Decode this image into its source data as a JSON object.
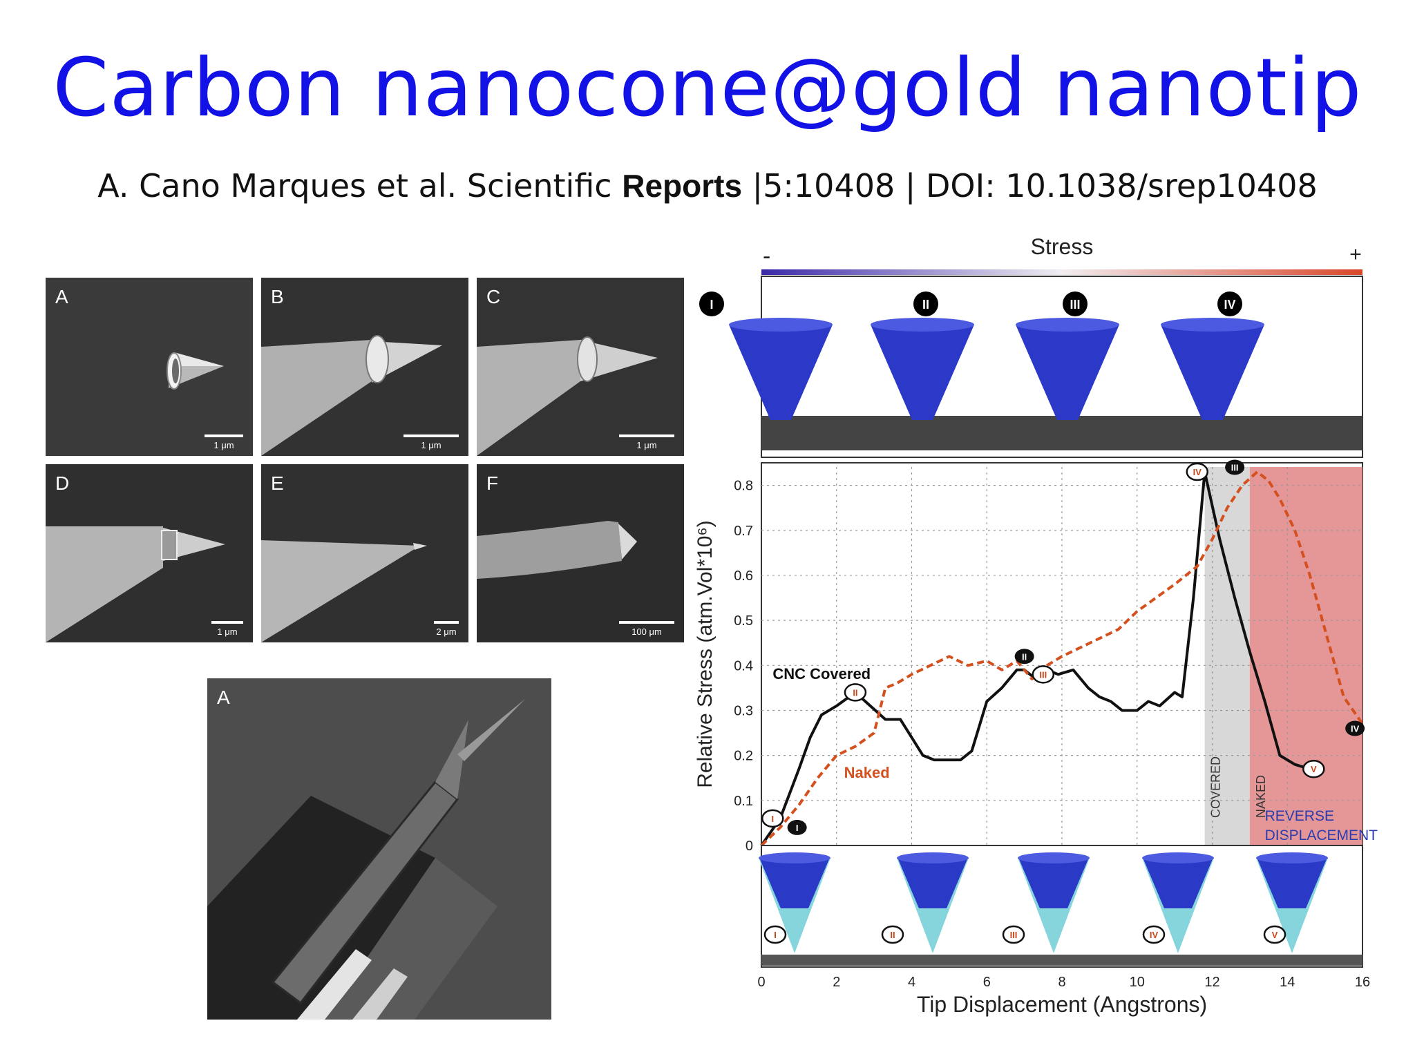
{
  "slide": {
    "title": "Carbon nanocone@gold nanotip",
    "citation": {
      "authors": "A. Cano  Marques et al. Scientific",
      "journal": "Reports",
      "rest": "|5:10408 | DOI: 10.1038/srep10408"
    }
  },
  "sem_panels": [
    {
      "label": "A",
      "scale": "1 μm"
    },
    {
      "label": "B",
      "scale": "1 μm"
    },
    {
      "label": "C",
      "scale": "1 μm"
    },
    {
      "label": "D",
      "scale": "1 μm"
    },
    {
      "label": "E",
      "scale": "2 μm"
    },
    {
      "label": "F",
      "scale": "100 μm"
    }
  ],
  "large_panel": {
    "label": "A"
  },
  "chart_data": {
    "type": "line",
    "colorbar": {
      "label": "Stress",
      "min_label": "-",
      "max_label": "+",
      "colors": [
        "#3a2aa8",
        "#f2eef2",
        "#d9472a"
      ]
    },
    "xlabel": "Tip Displacement (Angstrons)",
    "ylabel": "Relative Stress (atm.Vol*10⁶)",
    "xlim": [
      0,
      16
    ],
    "ylim": [
      0,
      0.85
    ],
    "xticks": [
      "0",
      "2",
      "4",
      "6",
      "8",
      "10",
      "12",
      "14",
      "16"
    ],
    "yticks": [
      "0",
      "0.1",
      "0.2",
      "0.3",
      "0.4",
      "0.5",
      "0.6",
      "0.7",
      "0.8"
    ],
    "grid": true,
    "series": [
      {
        "name": "CNC Covered",
        "color": "#111111",
        "style": "solid",
        "x": [
          0,
          0.5,
          1,
          1.3,
          1.6,
          2,
          2.5,
          2.9,
          3.3,
          3.7,
          4,
          4.3,
          4.6,
          5,
          5.3,
          5.6,
          6,
          6.4,
          6.8,
          7,
          7.3,
          7.6,
          7.9,
          8.3,
          8.7,
          9,
          9.3,
          9.6,
          10,
          10.3,
          10.6,
          11,
          11.2,
          11.5,
          11.8,
          12.2,
          12.6,
          13,
          13.4,
          13.8,
          14.2,
          14.6
        ],
        "y": [
          0,
          0.06,
          0.17,
          0.24,
          0.29,
          0.31,
          0.34,
          0.31,
          0.28,
          0.28,
          0.24,
          0.2,
          0.19,
          0.19,
          0.19,
          0.21,
          0.32,
          0.35,
          0.39,
          0.39,
          0.37,
          0.39,
          0.38,
          0.39,
          0.35,
          0.33,
          0.32,
          0.3,
          0.3,
          0.32,
          0.31,
          0.34,
          0.33,
          0.55,
          0.83,
          0.68,
          0.55,
          0.43,
          0.32,
          0.2,
          0.18,
          0.17
        ]
      },
      {
        "name": "Naked",
        "color": "#d4501e",
        "style": "dashed",
        "x": [
          0,
          0.5,
          1,
          1.5,
          2,
          2.5,
          3,
          3.3,
          3.6,
          4,
          4.5,
          5,
          5.5,
          6,
          6.4,
          6.8,
          7.2,
          7.6,
          8,
          8.5,
          9,
          9.5,
          10,
          10.5,
          11,
          11.3,
          11.6,
          12,
          12.4,
          12.8,
          13.2,
          13.5,
          13.8,
          14.2,
          14.6,
          15,
          15.5,
          16
        ],
        "y": [
          0,
          0.04,
          0.09,
          0.15,
          0.2,
          0.22,
          0.25,
          0.35,
          0.36,
          0.38,
          0.4,
          0.42,
          0.4,
          0.41,
          0.39,
          0.41,
          0.37,
          0.4,
          0.42,
          0.44,
          0.46,
          0.48,
          0.52,
          0.55,
          0.58,
          0.6,
          0.62,
          0.68,
          0.75,
          0.8,
          0.83,
          0.81,
          0.77,
          0.7,
          0.6,
          0.48,
          0.33,
          0.27
        ]
      }
    ],
    "series_labels": [
      {
        "text": "CNC Covered",
        "x": 0.3,
        "y": 0.37
      },
      {
        "text": "Naked",
        "x": 2.2,
        "y": 0.15
      }
    ],
    "regions": [
      {
        "label": "COVERED",
        "x_start": 11.8,
        "x_end": 13.0,
        "color": "#d4d4d4"
      },
      {
        "label": "NAKED",
        "x_start": 13.0,
        "x_end": 16.0,
        "color": "#e28b8c"
      }
    ],
    "region_annotation": [
      "REVERSE",
      "DISPLACEMENT"
    ],
    "markers": [
      {
        "text": "I",
        "x": 0.3,
        "y": 0.06,
        "style": "open"
      },
      {
        "text": "I",
        "x": 0.95,
        "y": 0.04,
        "style": "filled"
      },
      {
        "text": "II",
        "x": 2.5,
        "y": 0.34,
        "style": "open"
      },
      {
        "text": "II",
        "x": 7.0,
        "y": 0.42,
        "style": "filled"
      },
      {
        "text": "III",
        "x": 7.5,
        "y": 0.38,
        "style": "open"
      },
      {
        "text": "IV",
        "x": 11.6,
        "y": 0.83,
        "style": "open"
      },
      {
        "text": "III",
        "x": 12.6,
        "y": 0.84,
        "style": "filled"
      },
      {
        "text": "V",
        "x": 14.7,
        "y": 0.17,
        "style": "open"
      },
      {
        "text": "IV",
        "x": 15.8,
        "y": 0.26,
        "style": "filled"
      }
    ],
    "top_snapshot_labels": [
      "I",
      "II",
      "III",
      "IV"
    ],
    "bottom_snapshot_labels": [
      "I",
      "II",
      "III",
      "IV",
      "V"
    ]
  }
}
